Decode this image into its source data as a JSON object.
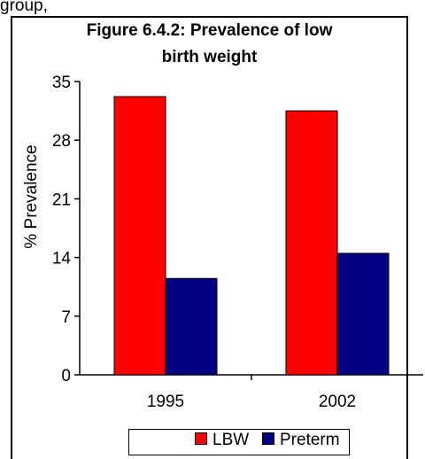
{
  "top_text": "group, ",
  "chart_data": {
    "type": "bar",
    "title_lines": [
      "Figure 6.4.2: Prevalence of low",
      "birth weight"
    ],
    "ylabel": "% Prevalence",
    "xlabel": "",
    "categories": [
      "1995",
      "2002"
    ],
    "ylim": [
      0,
      35
    ],
    "yticks": [
      "0",
      "7",
      "14",
      "21",
      "28",
      "35"
    ],
    "series": [
      {
        "name": "LBW",
        "values": [
          33.2,
          31.5
        ],
        "color": "#ff0000"
      },
      {
        "name": "Preterm",
        "values": [
          11.5,
          14.5
        ],
        "color": "#000080"
      }
    ],
    "legend_position": "bottom",
    "grid": false
  }
}
